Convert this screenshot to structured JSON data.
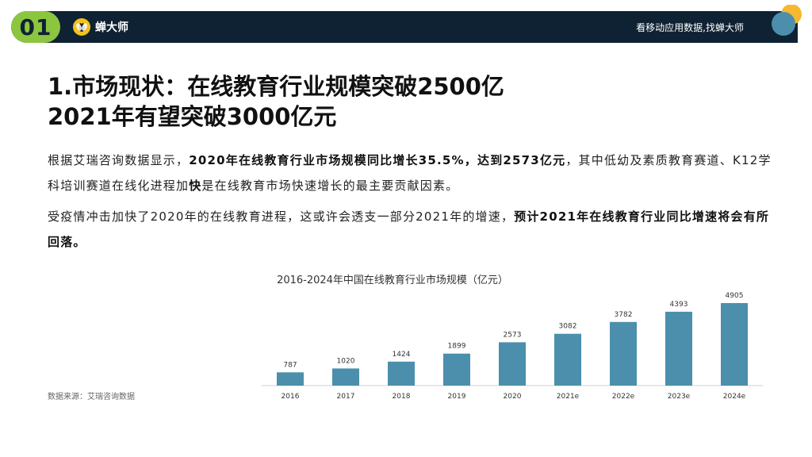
{
  "header": {
    "section_number": "01",
    "logo_text": "蝉大师",
    "slogan": "看移动应用数据,找蝉大师"
  },
  "title": {
    "line1": "1.市场现状：在线教育行业规模突破2500亿",
    "line2": "2021年有望突破3000亿元"
  },
  "paragraph1": {
    "part1": "根据艾瑞咨询数据显示，",
    "bold1": "2020年在线教育行业市场规模同比增长35.5%，达到2573亿元",
    "part2": "，其中低幼及素质教育赛道、K12学科培训赛道在线化进程加",
    "bold2": "快",
    "part3": "是在线教育市场快速增长的最主要贡献因素。"
  },
  "paragraph2": {
    "part1": "受疫情冲击加快了2020年的在线教育进程，这或许会透支一部分2021年的增速，",
    "bold1": "预计2021年在线教育行业同比增速将会有所回落。"
  },
  "source": "数据来源：艾瑞咨询数据",
  "colors": {
    "bar": "#4b8fac",
    "header_bg": "#0f2233",
    "accent_green": "#8cc63f",
    "accent_yellow": "#f3c21c"
  },
  "chart_data": {
    "type": "bar",
    "title": "2016-2024年中国在线教育行业市场规模（亿元）",
    "categories": [
      "2016",
      "2017",
      "2018",
      "2019",
      "2020",
      "2021e",
      "2022e",
      "2023e",
      "2024e"
    ],
    "values": [
      787,
      1020,
      1424,
      1899,
      2573,
      3082,
      3782,
      4393,
      4905
    ],
    "xlabel": "",
    "ylabel": "",
    "ylim": [
      0,
      4905
    ],
    "grid": false,
    "legend": "none"
  }
}
